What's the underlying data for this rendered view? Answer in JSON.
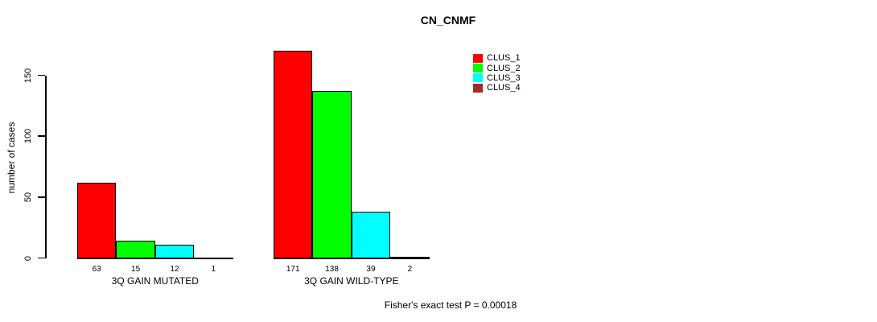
{
  "chart_data": {
    "type": "bar",
    "title": "CN_CNMF",
    "ylabel": "number of cases",
    "xlabel": "",
    "yticks": [
      0,
      50,
      100,
      150
    ],
    "ylim": [
      0,
      171
    ],
    "grid": false,
    "legend_position": "top-right",
    "categories": [
      "3Q GAIN MUTATED",
      "3Q GAIN WILD-TYPE"
    ],
    "series": [
      {
        "name": "CLUS_1",
        "color": "#ff0000",
        "values": [
          63,
          171
        ]
      },
      {
        "name": "CLUS_2",
        "color": "#00ff00",
        "values": [
          15,
          138
        ]
      },
      {
        "name": "CLUS_3",
        "color": "#00ffff",
        "values": [
          12,
          39
        ]
      },
      {
        "name": "CLUS_4",
        "color": "#a52a2a",
        "values": [
          1,
          2
        ]
      }
    ],
    "bar_value_labels": [
      [
        63,
        15,
        12,
        1
      ],
      [
        171,
        138,
        39,
        2
      ]
    ],
    "caption": "Fisher's exact test P = 0.00018"
  }
}
